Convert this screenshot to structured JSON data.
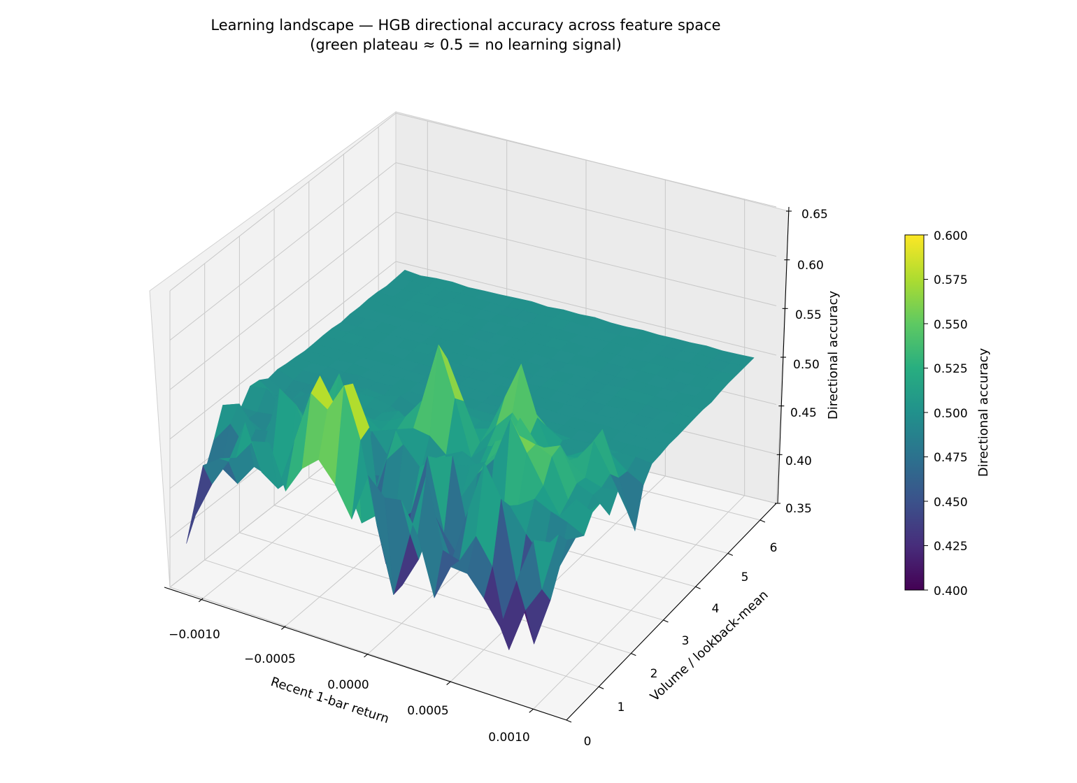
{
  "chart_data": {
    "type": "surface3d",
    "title": "Learning landscape — HGB directional accuracy across feature space",
    "subtitle": "(green plateau ≈ 0.5 = no learning signal)",
    "xlabel": "Recent 1-bar return",
    "ylabel": "Volume / lookback-mean",
    "zlabel": "Directional accuracy",
    "x_ticks": [
      "−0.0010",
      "−0.0005",
      "0.0000",
      "0.0005",
      "0.0010"
    ],
    "x_tick_values": [
      -0.001,
      -0.0005,
      0,
      0.0005,
      0.001
    ],
    "y_ticks": [
      "0",
      "1",
      "2",
      "3",
      "4",
      "5",
      "6"
    ],
    "y_tick_values": [
      0,
      1,
      2,
      3,
      4,
      5,
      6
    ],
    "z_ticks": [
      "0.35",
      "0.40",
      "0.45",
      "0.50",
      "0.55",
      "0.60",
      "0.65"
    ],
    "z_tick_values": [
      0.35,
      0.4,
      0.45,
      0.5,
      0.55,
      0.6,
      0.65
    ],
    "xlim": [
      -0.0012,
      0.0012
    ],
    "ylim": [
      0,
      6.5
    ],
    "zlim": [
      0.35,
      0.65
    ],
    "grid": true,
    "colormap": "viridis",
    "plateau_value": 0.5,
    "colorbar": {
      "label": "Directional accuracy",
      "range": [
        0.4,
        0.6
      ],
      "ticks": [
        "0.400",
        "0.425",
        "0.450",
        "0.475",
        "0.500",
        "0.525",
        "0.550",
        "0.575",
        "0.600"
      ],
      "tick_values": [
        0.4,
        0.425,
        0.45,
        0.475,
        0.5,
        0.525,
        0.55,
        0.575,
        0.6
      ]
    },
    "peaks": [
      {
        "x": -0.00015,
        "y": 0.4,
        "z": 0.64
      },
      {
        "x": 0.0,
        "y": 2.2,
        "z": 0.6
      },
      {
        "x": -0.00065,
        "y": 0.8,
        "z": 0.6
      },
      {
        "x": -0.0004,
        "y": 0.4,
        "z": 0.585
      },
      {
        "x": 0.0006,
        "y": 1.4,
        "z": 0.585
      },
      {
        "x": 0.0004,
        "y": 2.6,
        "z": 0.59
      },
      {
        "x": 0.0009,
        "y": 2.5,
        "z": 0.545
      },
      {
        "x": 0.00065,
        "y": 0.4,
        "z": 0.575
      },
      {
        "x": -0.0001,
        "y": 1.0,
        "z": 0.56
      },
      {
        "x": 0.0002,
        "y": 0.9,
        "z": 0.57
      },
      {
        "x": 0.0003,
        "y": 0.3,
        "z": 0.595
      },
      {
        "x": 0.0008,
        "y": 1.8,
        "z": 0.555
      },
      {
        "x": -0.0008,
        "y": 0.2,
        "z": 0.535
      },
      {
        "x": -0.0005,
        "y": 1.6,
        "z": 0.545
      },
      {
        "x": 0.0005,
        "y": 2.0,
        "z": 0.545
      },
      {
        "x": 0.001,
        "y": 1.2,
        "z": 0.525
      }
    ],
    "troughs": [
      {
        "x": -0.0011,
        "y": 0.2,
        "z": 0.39
      },
      {
        "x": 0.0004,
        "y": 0.1,
        "z": 0.37
      },
      {
        "x": 0.00075,
        "y": 0.25,
        "z": 0.375
      },
      {
        "x": 0.0001,
        "y": 0.4,
        "z": 0.4
      },
      {
        "x": 0.0,
        "y": 0.7,
        "z": 0.415
      },
      {
        "x": -0.0002,
        "y": 0.9,
        "z": 0.41
      },
      {
        "x": 0.0003,
        "y": 0.6,
        "z": 0.42
      },
      {
        "x": 0.0009,
        "y": 0.5,
        "z": 0.395
      },
      {
        "x": -0.0006,
        "y": 0.5,
        "z": 0.43
      },
      {
        "x": 0.0011,
        "y": 2.6,
        "z": 0.445
      },
      {
        "x": 0.0005,
        "y": 1.0,
        "z": 0.43
      },
      {
        "x": -0.0009,
        "y": 0.6,
        "z": 0.44
      }
    ]
  }
}
